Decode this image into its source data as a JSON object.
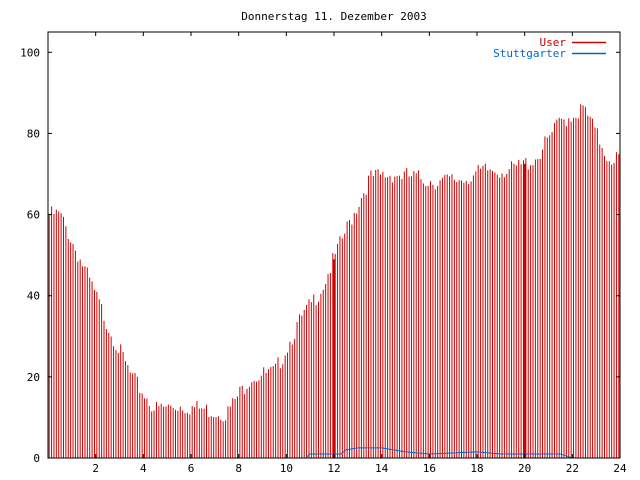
{
  "chart_data": {
    "type": "bar",
    "title": "Donnerstag 11. Dezember 2003",
    "xlabel": "",
    "ylabel": "",
    "xlim": [
      0,
      24
    ],
    "ylim": [
      0,
      105
    ],
    "x_ticks": [
      "2",
      "4",
      "6",
      "8",
      "10",
      "12",
      "14",
      "16",
      "18",
      "20",
      "22",
      "24"
    ],
    "y_ticks": [
      "0",
      "20",
      "40",
      "60",
      "80",
      "100"
    ],
    "legend_position": "top-right",
    "series": [
      {
        "name": "User",
        "color": "#cc0000",
        "style": "impulses",
        "hour_averages": [
          60,
          47,
          33,
          20,
          12,
          13,
          12,
          11,
          20,
          21,
          33,
          42,
          56,
          69,
          70,
          69,
          68,
          69,
          71,
          71,
          74,
          83,
          86,
          74
        ]
      },
      {
        "name": "Stuttgarter",
        "color": "#0066cc",
        "style": "line",
        "points": [
          [
            0,
            0
          ],
          [
            10.8,
            0
          ],
          [
            11.0,
            1
          ],
          [
            12.3,
            1
          ],
          [
            12.5,
            2
          ],
          [
            13.0,
            2.5
          ],
          [
            14.0,
            2.5
          ],
          [
            15.0,
            1.5
          ],
          [
            16.0,
            1
          ],
          [
            18.0,
            1.5
          ],
          [
            19.0,
            1
          ],
          [
            21.5,
            1
          ],
          [
            22.0,
            0
          ],
          [
            24,
            0
          ]
        ]
      }
    ]
  }
}
